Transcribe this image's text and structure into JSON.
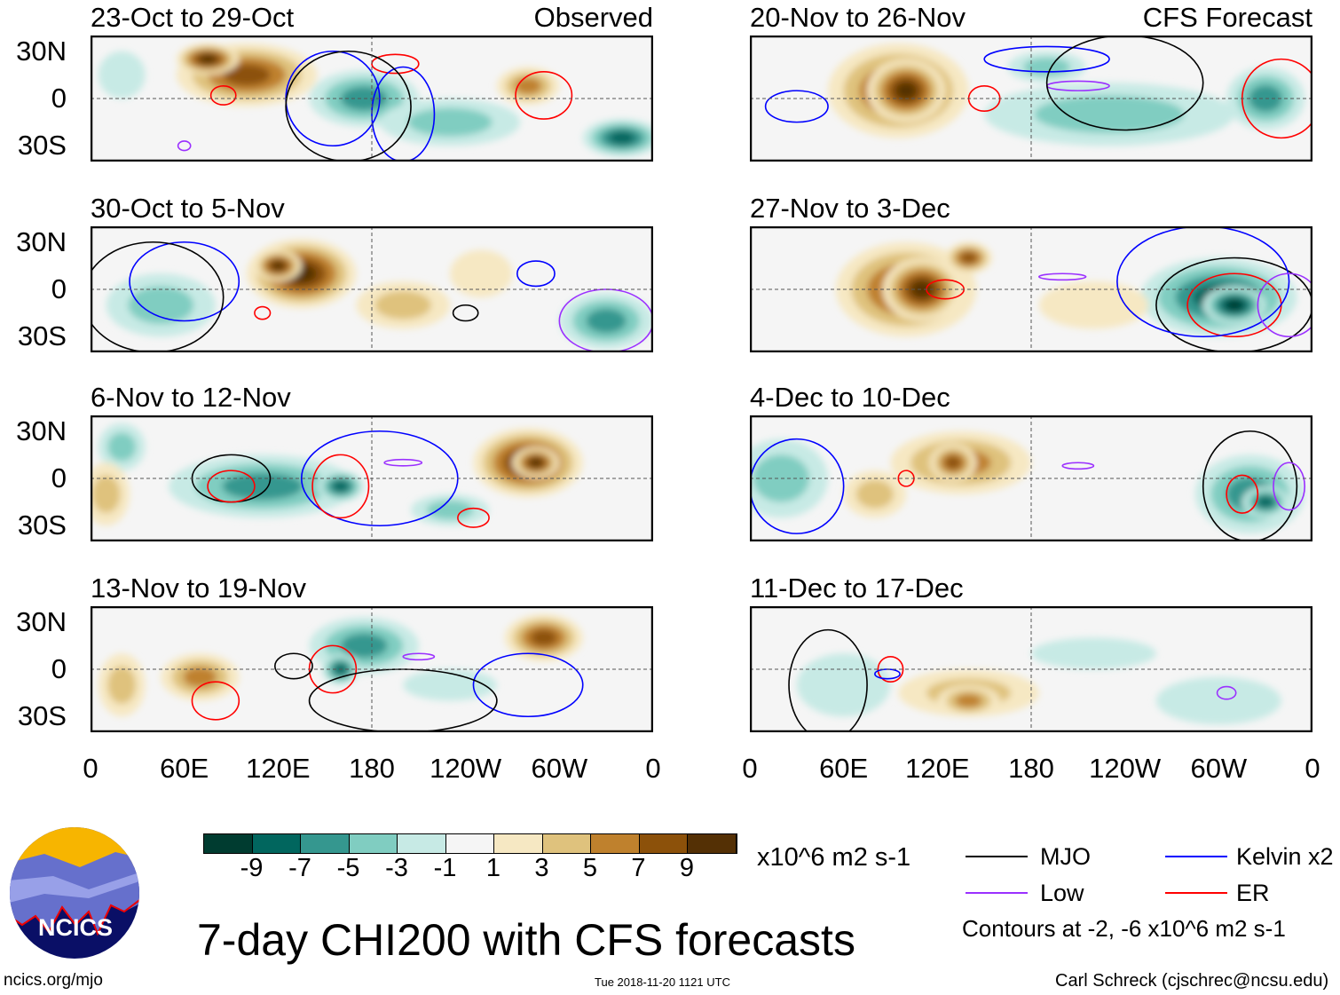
{
  "title": "7-day CHI200 with CFS forecasts",
  "site": "ncics.org/mjo",
  "logo_text": "NCICS",
  "timestamp": "Tue 2018-11-20 1121 UTC",
  "author": "Carl Schreck (cjschrec@ncsu.edu)",
  "colors": {
    "levels": [
      "#003c30",
      "#01665e",
      "#35978f",
      "#80cdc1",
      "#c7eae5",
      "#f5f5f5",
      "#f6e8c3",
      "#dfc27d",
      "#bf812d",
      "#8c510a",
      "#543005"
    ],
    "MJO": "#000000",
    "Kelvin": "#0000ff",
    "Low": "#9b30ff",
    "ER": "#ff0000"
  },
  "colorbar": {
    "ticks": [
      "-9",
      "-7",
      "-5",
      "-3",
      "-1",
      "1",
      "3",
      "5",
      "7",
      "9"
    ],
    "units": "x10^6 m2 s-1"
  },
  "legend": {
    "items": [
      {
        "label": "MJO",
        "key": "MJO"
      },
      {
        "label": "Kelvin x2",
        "key": "Kelvin"
      },
      {
        "label": "Low",
        "key": "Low"
      },
      {
        "label": "ER",
        "key": "ER"
      }
    ],
    "note": "Contours at -2, -6 x10^6 m2 s-1"
  },
  "axes": {
    "lat_labels": [
      "30N",
      "0",
      "30S"
    ],
    "lon_labels": [
      "0",
      "60E",
      "120E",
      "180",
      "120W",
      "60W",
      "0"
    ]
  },
  "column_labels": {
    "left": "Observed",
    "right": "CFS Forecast"
  },
  "chart_data": {
    "type": "heatmap",
    "variable": "7-day CHI200 anomaly",
    "lon_range": [
      0,
      360
    ],
    "lat_range": [
      -40,
      40
    ],
    "panels": [
      {
        "title": "23-Oct to 29-Oct",
        "col": "left",
        "blobs": [
          [
            100,
            15,
            45,
            20,
            7
          ],
          [
            75,
            25,
            20,
            10,
            9
          ],
          [
            280,
            8,
            20,
            12,
            5
          ],
          [
            175,
            0,
            35,
            18,
            -5
          ],
          [
            340,
            -25,
            25,
            12,
            -7
          ],
          [
            230,
            -15,
            45,
            15,
            -3
          ],
          [
            20,
            15,
            15,
            15,
            -1
          ]
        ],
        "contours": [
          [
            "ER",
            85,
            2,
            8,
            6
          ],
          [
            "ER",
            195,
            22,
            15,
            6
          ],
          [
            "ER",
            290,
            2,
            18,
            15
          ],
          [
            "Kelvin",
            155,
            0,
            30,
            30
          ],
          [
            "Kelvin",
            200,
            -10,
            20,
            30
          ],
          [
            "MJO",
            165,
            -5,
            40,
            35
          ],
          [
            "Low",
            60,
            -30,
            4,
            3
          ]
        ]
      },
      {
        "title": "30-Oct to 5-Nov",
        "col": "left",
        "blobs": [
          [
            135,
            10,
            35,
            22,
            9
          ],
          [
            120,
            15,
            15,
            10,
            9
          ],
          [
            45,
            -10,
            35,
            20,
            -3
          ],
          [
            330,
            -20,
            30,
            18,
            -5
          ],
          [
            200,
            -10,
            30,
            15,
            3
          ],
          [
            250,
            10,
            20,
            15,
            1
          ]
        ],
        "contours": [
          [
            "Kelvin",
            60,
            5,
            35,
            25
          ],
          [
            "MJO",
            40,
            -5,
            45,
            35
          ],
          [
            "Kelvin",
            285,
            10,
            12,
            8
          ],
          [
            "ER",
            110,
            -15,
            5,
            4
          ],
          [
            "MJO",
            240,
            -15,
            8,
            5
          ],
          [
            "Low",
            330,
            -20,
            30,
            20
          ]
        ]
      },
      {
        "title": "6-Nov to 12-Nov",
        "col": "left",
        "blobs": [
          [
            280,
            10,
            35,
            22,
            9
          ],
          [
            285,
            10,
            15,
            10,
            9
          ],
          [
            110,
            -5,
            60,
            20,
            -5
          ],
          [
            160,
            -5,
            15,
            10,
            -7
          ],
          [
            20,
            20,
            15,
            15,
            -3
          ],
          [
            10,
            -10,
            15,
            20,
            3
          ],
          [
            230,
            -20,
            25,
            10,
            -3
          ]
        ],
        "contours": [
          [
            "MJO",
            90,
            0,
            25,
            15
          ],
          [
            "ER",
            90,
            -5,
            15,
            10
          ],
          [
            "Kelvin",
            185,
            0,
            50,
            30
          ],
          [
            "ER",
            160,
            -5,
            18,
            20
          ],
          [
            "ER",
            245,
            -25,
            10,
            6
          ],
          [
            "Low",
            200,
            10,
            12,
            2
          ]
        ]
      },
      {
        "title": "13-Nov to 19-Nov",
        "col": "left",
        "blobs": [
          [
            175,
            15,
            35,
            18,
            -5
          ],
          [
            160,
            0,
            12,
            10,
            -7
          ],
          [
            70,
            -5,
            25,
            15,
            5
          ],
          [
            290,
            20,
            25,
            15,
            7
          ],
          [
            20,
            -10,
            15,
            20,
            3
          ],
          [
            230,
            -10,
            30,
            10,
            -1
          ]
        ],
        "contours": [
          [
            "ER",
            155,
            0,
            15,
            15
          ],
          [
            "MJO",
            130,
            2,
            12,
            8
          ],
          [
            "Kelvin",
            280,
            -10,
            35,
            20
          ],
          [
            "ER",
            80,
            -20,
            15,
            12
          ],
          [
            "Low",
            210,
            8,
            10,
            2
          ],
          [
            "MJO",
            200,
            -20,
            60,
            20
          ]
        ]
      },
      {
        "title": "20-Nov to 26-Nov",
        "col": "right",
        "blobs": [
          [
            95,
            5,
            45,
            30,
            7
          ],
          [
            100,
            5,
            25,
            20,
            9
          ],
          [
            230,
            -10,
            80,
            20,
            -3
          ],
          [
            330,
            0,
            25,
            20,
            -5
          ],
          [
            190,
            20,
            25,
            10,
            -3
          ]
        ],
        "contours": [
          [
            "ER",
            150,
            0,
            10,
            8
          ],
          [
            "ER",
            340,
            0,
            25,
            25
          ],
          [
            "Kelvin",
            30,
            -5,
            20,
            10
          ],
          [
            "Kelvin",
            190,
            25,
            40,
            8
          ],
          [
            "Low",
            210,
            8,
            20,
            3
          ],
          [
            "MJO",
            240,
            10,
            50,
            30
          ]
        ]
      },
      {
        "title": "27-Nov to 3-Dec",
        "col": "right",
        "blobs": [
          [
            100,
            0,
            45,
            30,
            7
          ],
          [
            110,
            0,
            25,
            20,
            9
          ],
          [
            140,
            20,
            15,
            10,
            7
          ],
          [
            300,
            -5,
            50,
            25,
            -7
          ],
          [
            310,
            -10,
            20,
            12,
            -9
          ],
          [
            220,
            -10,
            35,
            15,
            1
          ]
        ],
        "contours": [
          [
            "ER",
            310,
            -10,
            30,
            20
          ],
          [
            "ER",
            125,
            0,
            12,
            6
          ],
          [
            "MJO",
            310,
            -10,
            50,
            30
          ],
          [
            "Kelvin",
            290,
            5,
            55,
            35
          ],
          [
            "Low",
            200,
            8,
            15,
            2
          ],
          [
            "Low",
            345,
            -10,
            20,
            20
          ]
        ]
      },
      {
        "title": "4-Dec to 10-Dec",
        "col": "right",
        "blobs": [
          [
            135,
            10,
            45,
            20,
            5
          ],
          [
            130,
            10,
            15,
            12,
            7
          ],
          [
            80,
            -10,
            20,
            15,
            3
          ],
          [
            320,
            -10,
            35,
            25,
            -5
          ],
          [
            330,
            -15,
            15,
            10,
            -7
          ],
          [
            20,
            0,
            30,
            25,
            -3
          ]
        ],
        "contours": [
          [
            "Kelvin",
            30,
            -5,
            30,
            30
          ],
          [
            "MJO",
            320,
            -5,
            30,
            35
          ],
          [
            "ER",
            315,
            -10,
            10,
            12
          ],
          [
            "ER",
            100,
            0,
            5,
            5
          ],
          [
            "Low",
            210,
            8,
            10,
            2
          ],
          [
            "Low",
            345,
            -5,
            10,
            15
          ]
        ]
      },
      {
        "title": "11-Dec to 17-Dec",
        "col": "right",
        "blobs": [
          [
            140,
            -15,
            45,
            15,
            3
          ],
          [
            140,
            -20,
            20,
            10,
            5
          ],
          [
            60,
            -10,
            30,
            20,
            -1
          ],
          [
            300,
            -20,
            40,
            15,
            -1
          ],
          [
            220,
            10,
            40,
            10,
            -1
          ]
        ],
        "contours": [
          [
            "ER",
            90,
            0,
            8,
            8
          ],
          [
            "Kelvin",
            88,
            -3,
            8,
            3
          ],
          [
            "Low",
            305,
            -15,
            6,
            4
          ],
          [
            "MJO",
            50,
            -10,
            25,
            35
          ]
        ]
      }
    ]
  }
}
